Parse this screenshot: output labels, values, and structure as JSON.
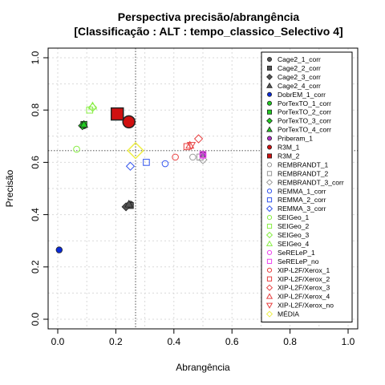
{
  "chart_data": {
    "type": "scatter",
    "title": [
      "Perspectiva precisão/abrangência",
      "[Classificação : ALT : tempo_classico_Selectivo 4]"
    ],
    "xlabel": "Abrangência",
    "ylabel": "Precisão",
    "xlim": [
      0,
      1
    ],
    "ylim": [
      0,
      1
    ],
    "xticks": [
      0.0,
      0.2,
      0.4,
      0.6,
      0.8,
      1.0
    ],
    "yticks": [
      0.0,
      0.2,
      0.4,
      0.6,
      0.8,
      1.0
    ],
    "xtick_labels": [
      "0.0",
      "0.2",
      "0.4",
      "0.6",
      "0.8",
      "1.0"
    ],
    "ytick_labels": [
      "0.0",
      "0.2",
      "0.4",
      "0.6",
      "0.8",
      "1.0"
    ],
    "grid": true,
    "legend_position": "right",
    "reference_lines": {
      "x": 0.268,
      "y": 0.645
    },
    "series": [
      {
        "name": "Cage2_1_corr",
        "shape": "circle",
        "filled": true,
        "color": "#555555",
        "points": [
          [
            0.25,
            0.44
          ]
        ]
      },
      {
        "name": "Cage2_2_corr",
        "shape": "square",
        "filled": true,
        "color": "#555555",
        "points": [
          [
            0.25,
            0.435
          ]
        ]
      },
      {
        "name": "Cage2_3_corr",
        "shape": "diamond",
        "filled": true,
        "color": "#555555",
        "points": [
          [
            0.235,
            0.43
          ]
        ]
      },
      {
        "name": "Cage2_4_corr",
        "shape": "triangle",
        "filled": true,
        "color": "#555555",
        "points": [
          [
            0.245,
            0.44
          ]
        ]
      },
      {
        "name": "DobrEM_1_corr",
        "shape": "circle",
        "filled": true,
        "color": "#0a2ad8",
        "points": [
          [
            0.005,
            0.265
          ]
        ]
      },
      {
        "name": "PorTexTO_1_corr",
        "shape": "circle",
        "filled": true,
        "color": "#22cc22",
        "points": [
          [
            0.09,
            0.74
          ]
        ]
      },
      {
        "name": "PorTexTO_2_corr",
        "shape": "square",
        "filled": true,
        "color": "#22cc22",
        "points": [
          [
            0.09,
            0.745
          ]
        ]
      },
      {
        "name": "PorTexTO_3_corr",
        "shape": "diamond",
        "filled": true,
        "color": "#22cc22",
        "points": [
          [
            0.085,
            0.74
          ]
        ]
      },
      {
        "name": "PorTexTO_4_corr",
        "shape": "triangle",
        "filled": true,
        "color": "#22cc22",
        "points": [
          [
            0.09,
            0.745
          ]
        ]
      },
      {
        "name": "Priberam_1",
        "shape": "circle",
        "filled": true,
        "color": "#b030c8",
        "points": [
          [
            0.5,
            0.63
          ]
        ]
      },
      {
        "name": "R3M_1",
        "shape": "circle",
        "filled": true,
        "color": "#d01010",
        "points": [
          [
            0.245,
            0.755
          ]
        ],
        "big": true
      },
      {
        "name": "R3M_2",
        "shape": "square",
        "filled": true,
        "color": "#d01010",
        "points": [
          [
            0.205,
            0.785
          ]
        ],
        "big": true
      },
      {
        "name": "REMBRANDT_1",
        "shape": "circle",
        "filled": false,
        "color": "#999999",
        "points": [
          [
            0.465,
            0.62
          ]
        ]
      },
      {
        "name": "REMBRANDT_2",
        "shape": "square",
        "filled": false,
        "color": "#999999",
        "points": [
          [
            0.49,
            0.62
          ]
        ]
      },
      {
        "name": "REMBRANDT_3_corr",
        "shape": "diamond",
        "filled": false,
        "color": "#999999",
        "points": [
          [
            0.5,
            0.61
          ]
        ]
      },
      {
        "name": "REMMA_1_corr",
        "shape": "circle",
        "filled": false,
        "color": "#3355ee",
        "points": [
          [
            0.37,
            0.595
          ]
        ]
      },
      {
        "name": "REMMA_2_corr",
        "shape": "square",
        "filled": false,
        "color": "#3355ee",
        "points": [
          [
            0.305,
            0.6
          ]
        ]
      },
      {
        "name": "REMMA_3_corr",
        "shape": "diamond",
        "filled": false,
        "color": "#3355ee",
        "points": [
          [
            0.25,
            0.585
          ]
        ]
      },
      {
        "name": "SEIGeo_1",
        "shape": "circle",
        "filled": false,
        "color": "#88ee44",
        "points": [
          [
            0.065,
            0.65
          ]
        ]
      },
      {
        "name": "SEIGeo_2",
        "shape": "square",
        "filled": false,
        "color": "#88ee44",
        "points": [
          [
            0.11,
            0.8
          ]
        ]
      },
      {
        "name": "SEIGeo_3",
        "shape": "diamond",
        "filled": false,
        "color": "#88ee44",
        "points": [
          [
            0.12,
            0.81
          ]
        ]
      },
      {
        "name": "SEIGeo_4",
        "shape": "triangle",
        "filled": false,
        "color": "#88ee44",
        "points": [
          [
            0.12,
            0.815
          ]
        ]
      },
      {
        "name": "SeRELeP_1",
        "shape": "circle",
        "filled": false,
        "color": "#ee44ee",
        "points": [
          [
            0.5,
            0.625
          ]
        ]
      },
      {
        "name": "SeRELeP_no",
        "shape": "square",
        "filled": false,
        "color": "#ee44ee",
        "points": [
          [
            0.5,
            0.63
          ]
        ]
      },
      {
        "name": "XIP-L2F/Xerox_1",
        "shape": "circle",
        "filled": false,
        "color": "#e84040",
        "points": [
          [
            0.405,
            0.62
          ]
        ]
      },
      {
        "name": "XIP-L2F/Xerox_2",
        "shape": "square",
        "filled": false,
        "color": "#e84040",
        "points": [
          [
            0.445,
            0.66
          ]
        ]
      },
      {
        "name": "XIP-L2F/Xerox_3",
        "shape": "diamond",
        "filled": false,
        "color": "#e84040",
        "points": [
          [
            0.485,
            0.69
          ]
        ]
      },
      {
        "name": "XIP-L2F/Xerox_4",
        "shape": "triangle",
        "filled": false,
        "color": "#e84040",
        "points": [
          [
            0.455,
            0.665
          ]
        ]
      },
      {
        "name": "XIP-L2F/Xerox_no",
        "shape": "triangle-down",
        "filled": false,
        "color": "#e84040",
        "points": [
          [
            0.46,
            0.665
          ]
        ]
      },
      {
        "name": "MÉDIA",
        "shape": "diamond",
        "filled": false,
        "color": "#eeee44",
        "points": [
          [
            0.268,
            0.645
          ]
        ],
        "big": true
      }
    ]
  }
}
